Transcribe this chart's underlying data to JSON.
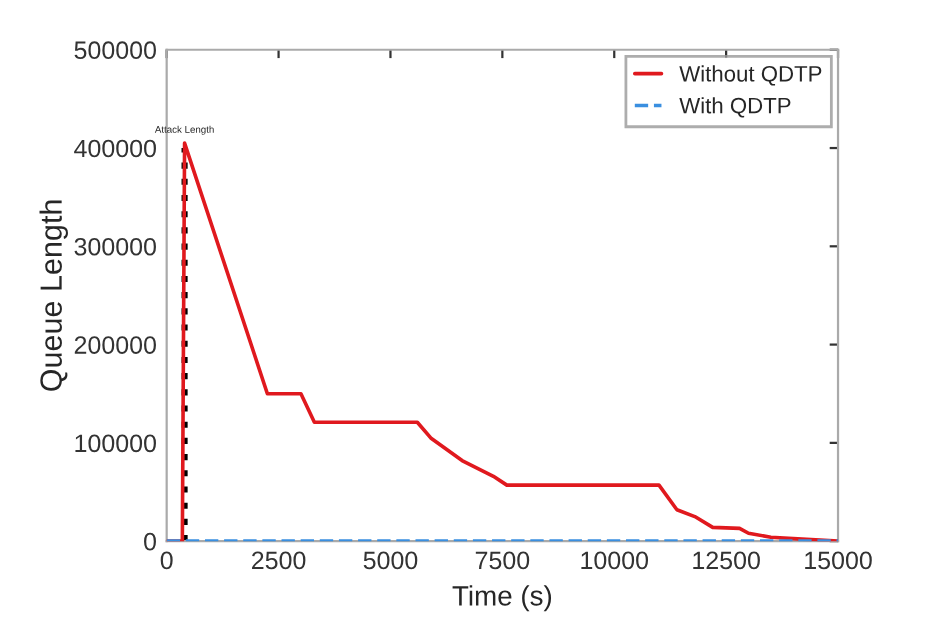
{
  "chart_data": {
    "type": "line",
    "xlabel": "Time (s)",
    "ylabel": "Queue Length",
    "xlim": [
      0,
      15000
    ],
    "xticks": [
      0,
      2500,
      5000,
      7500,
      10000,
      12500,
      15000
    ],
    "ylim": [
      0,
      500000
    ],
    "yticks": [
      0,
      100000,
      200000,
      300000,
      400000,
      500000
    ],
    "grid": false,
    "legend": "top right",
    "series": [
      {
        "name": "Without QDTP",
        "color": "#e0191e",
        "line_style": "solid",
        "x": [
          0,
          350,
          400,
          2250,
          3000,
          3300,
          5600,
          5900,
          6600,
          7300,
          7600,
          11000,
          11400,
          11800,
          12200,
          12800,
          13000,
          13500,
          14200,
          15000
        ],
        "values": [
          0,
          0,
          405000,
          150000,
          150000,
          121000,
          121000,
          105000,
          82000,
          66000,
          57000,
          57000,
          32000,
          25000,
          14000,
          13000,
          8000,
          4000,
          2000,
          0
        ]
      },
      {
        "name": "With QDTP",
        "color": "#3a8fe0",
        "line_style": "dashed",
        "x": [
          0,
          15000
        ],
        "values": [
          0,
          0
        ]
      },
      {
        "color": "#000000",
        "line_style": "dotted",
        "x": [
          400,
          400
        ],
        "values": [
          0,
          400000
        ]
      }
    ],
    "annotations": [
      {
        "text": "Attack Length",
        "x": 400,
        "y": 405000
      }
    ]
  }
}
